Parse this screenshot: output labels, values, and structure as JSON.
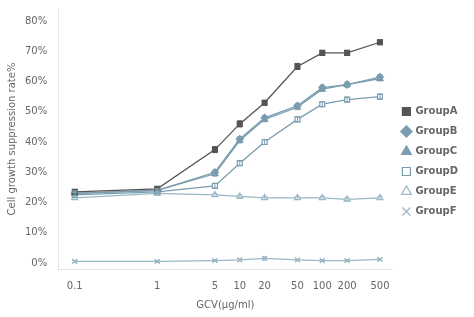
{
  "chart_data": {
    "type": "line",
    "xlabel": "GCV(μg/ml)",
    "ylabel": "Cell growth suppression rate%",
    "x": [
      0.1,
      1,
      5,
      10,
      20,
      50,
      100,
      200,
      500
    ],
    "series": [
      {
        "name": "GroupA",
        "color": "#555555",
        "marker": "square",
        "values": [
          23.5,
          24.5,
          37.5,
          46.0,
          53.0,
          65.0,
          69.5,
          69.5,
          73.0
        ],
        "errors": [
          0.8,
          0.5,
          1.0,
          1.0,
          0.8,
          1.0,
          0.8,
          0.8,
          0.8
        ]
      },
      {
        "name": "GroupB",
        "color": "#7a9db0",
        "marker": "diamond",
        "values": [
          23.0,
          24.0,
          30.0,
          41.0,
          48.0,
          52.0,
          58.0,
          59.0,
          61.5
        ],
        "errors": [
          0.8,
          0.5,
          0.8,
          0.8,
          0.8,
          0.8,
          0.8,
          0.8,
          0.8
        ]
      },
      {
        "name": "GroupC",
        "color": "#7a9db0",
        "marker": "triangle",
        "values": [
          23.0,
          24.0,
          29.5,
          40.5,
          47.5,
          51.5,
          57.5,
          59.0,
          61.0
        ],
        "errors": [
          0.8,
          0.5,
          0.8,
          0.8,
          0.8,
          0.8,
          0.8,
          0.8,
          0.8
        ]
      },
      {
        "name": "GroupD",
        "color": "#7a9db0",
        "marker": "open-square",
        "values": [
          22.5,
          23.5,
          25.5,
          33.0,
          40.0,
          47.5,
          52.5,
          54.0,
          55.0
        ],
        "errors": [
          0.8,
          0.5,
          0.8,
          0.8,
          0.8,
          0.8,
          0.8,
          0.8,
          0.8
        ]
      },
      {
        "name": "GroupE",
        "color": "#9ab8c5",
        "marker": "open-triangle",
        "values": [
          21.5,
          23.0,
          22.5,
          22.0,
          21.5,
          21.5,
          21.5,
          21.0,
          21.5
        ],
        "errors": [
          0.5,
          0.5,
          0.5,
          0.5,
          0.5,
          0.5,
          0.5,
          0.5,
          0.5
        ]
      },
      {
        "name": "GroupF",
        "color": "#9ab8c5",
        "marker": "x",
        "values": [
          0.5,
          0.5,
          0.8,
          1.0,
          1.5,
          1.0,
          0.8,
          0.8,
          1.2
        ],
        "errors": [
          0.3,
          0.3,
          0.3,
          0.3,
          0.5,
          0.3,
          0.3,
          0.3,
          0.3
        ]
      }
    ],
    "log": "x",
    "xlim": [
      0.0630957344480193,
      707.9457843841374
    ],
    "xticks": [
      0.1,
      1,
      5,
      10,
      20,
      50,
      100,
      200,
      500
    ],
    "ylim": [
      -2,
      84
    ],
    "yticks": [
      {
        "value": 0,
        "label": "0%"
      },
      {
        "value": 10,
        "label": "10%"
      },
      {
        "value": 20,
        "label": "20%"
      },
      {
        "value": 30,
        "label": "30%"
      },
      {
        "value": 40,
        "label": "40%"
      },
      {
        "value": 50,
        "label": "50%"
      },
      {
        "value": 60,
        "label": "60%"
      },
      {
        "value": 70,
        "label": "70%"
      },
      {
        "value": 80,
        "label": "80%"
      }
    ],
    "grid": false,
    "legend": "right"
  }
}
